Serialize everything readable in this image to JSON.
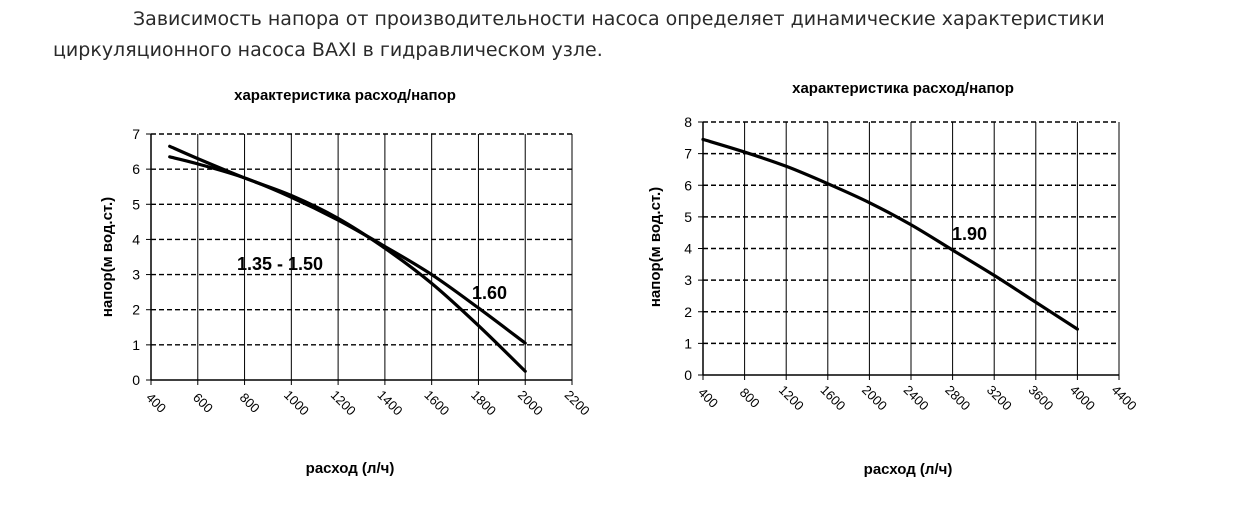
{
  "intro": {
    "line1": "Зависимость напора от производительности насоса определяет динамические характеристики",
    "line2": "циркуляционного насоса BAXI в гидравлическом узле."
  },
  "chart_data": [
    {
      "type": "line",
      "title": "характеристика расход/напор",
      "xlabel": "расход (л/ч)",
      "ylabel": "напор(м вод.ст.)",
      "xlim": [
        400,
        2200
      ],
      "ylim": [
        0,
        7
      ],
      "x_ticks": [
        400,
        600,
        800,
        1000,
        1200,
        1400,
        1600,
        1800,
        2000,
        2200
      ],
      "y_ticks": [
        0,
        1,
        2,
        3,
        4,
        5,
        6,
        7
      ],
      "grid": true,
      "series": [
        {
          "name": "1.35 - 1.50",
          "x": [
            480,
            600,
            800,
            1000,
            1200,
            1400,
            1600,
            1800,
            2000
          ],
          "y": [
            6.65,
            6.3,
            5.75,
            5.25,
            4.6,
            3.75,
            2.75,
            1.55,
            0.25
          ]
        },
        {
          "name": "1.60",
          "x": [
            480,
            600,
            800,
            1000,
            1200,
            1400,
            1600,
            1800,
            2000
          ],
          "y": [
            6.35,
            6.15,
            5.75,
            5.2,
            4.55,
            3.8,
            3.0,
            2.05,
            1.05
          ]
        }
      ],
      "annotations": [
        "1.35 - 1.50",
        "1.60"
      ]
    },
    {
      "type": "line",
      "title": "характеристика расход/напор",
      "xlabel": "расход (л/ч)",
      "ylabel": "напор(м вод.ст.)",
      "xlim": [
        400,
        4400
      ],
      "ylim": [
        0,
        8
      ],
      "x_ticks": [
        400,
        800,
        1200,
        1600,
        2000,
        2400,
        2800,
        3200,
        3600,
        4000,
        4400
      ],
      "y_ticks": [
        0,
        1,
        2,
        3,
        4,
        5,
        6,
        7,
        8
      ],
      "grid": true,
      "series": [
        {
          "name": "1.90",
          "x": [
            400,
            800,
            1200,
            1600,
            2000,
            2400,
            2800,
            3200,
            3600,
            4000
          ],
          "y": [
            7.45,
            7.05,
            6.6,
            6.05,
            5.45,
            4.75,
            3.95,
            3.15,
            2.3,
            1.45
          ]
        }
      ],
      "annotations": [
        "1.90"
      ]
    }
  ]
}
